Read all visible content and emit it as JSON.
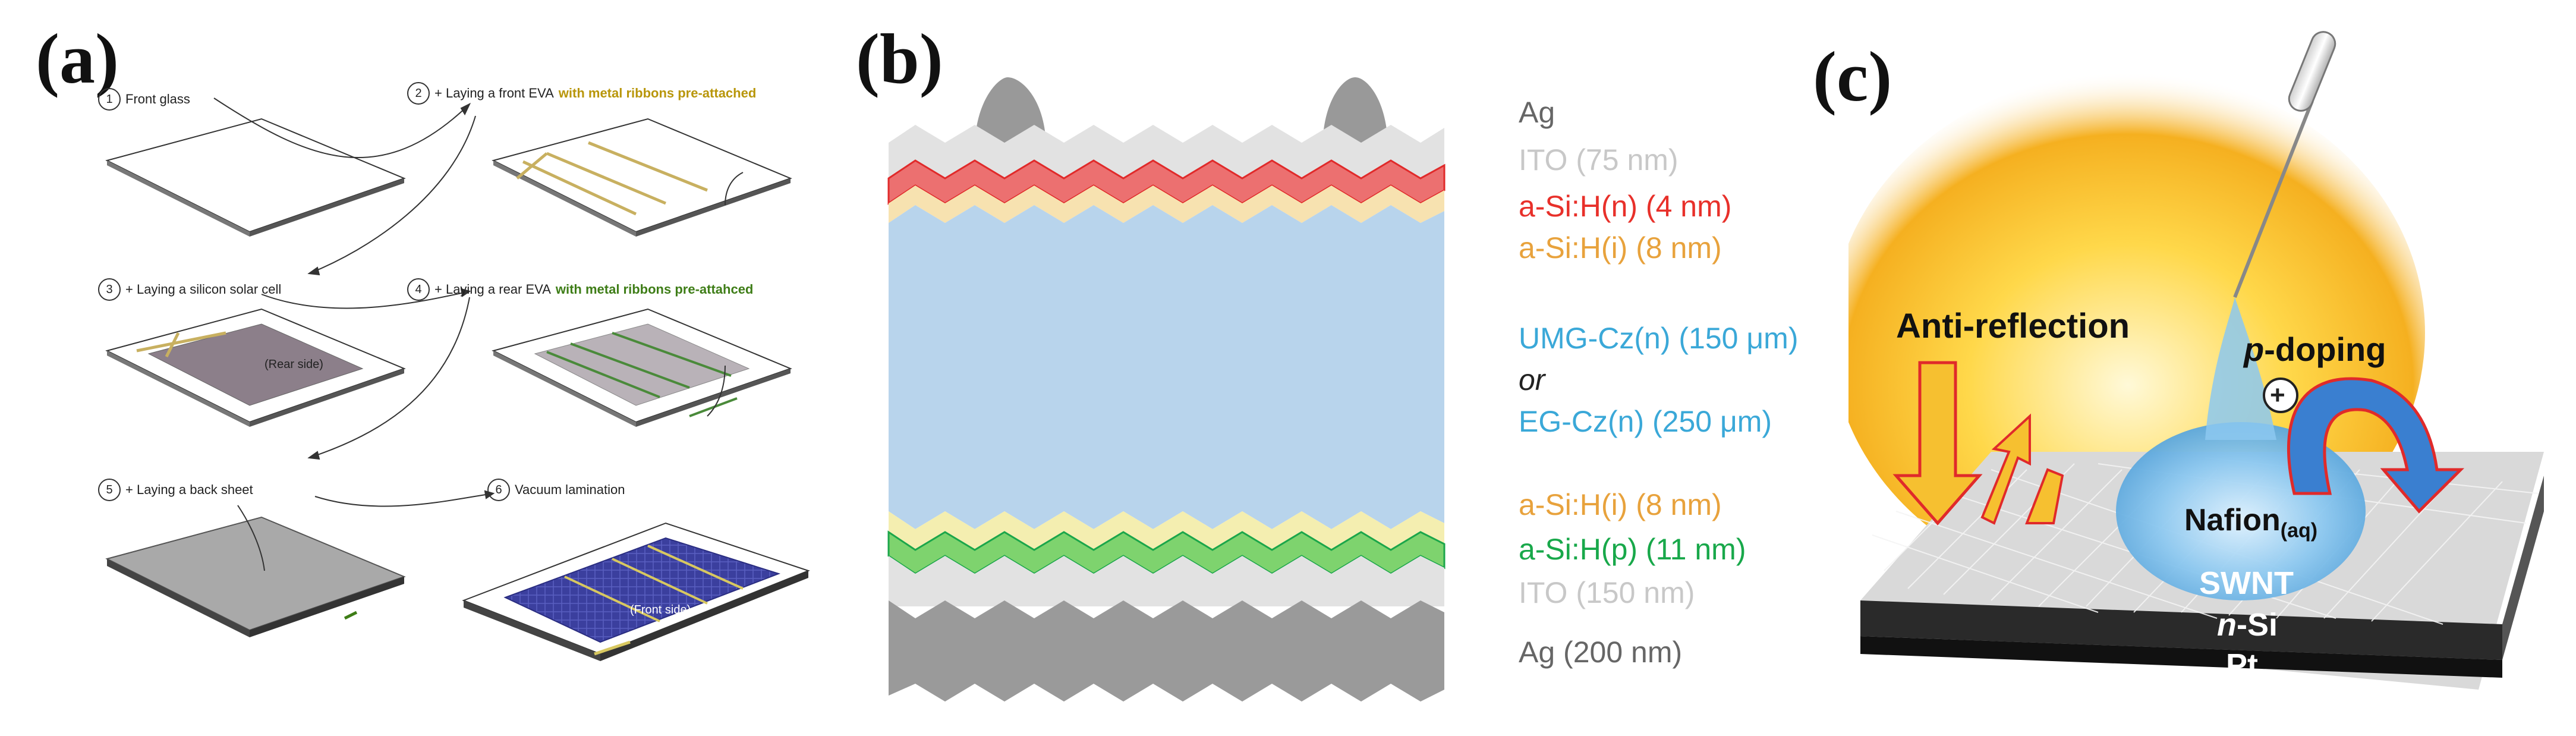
{
  "panels": {
    "a": "(a)",
    "b": "(b)",
    "c": "(c)"
  },
  "panel_a": {
    "steps": [
      {
        "num": "1",
        "text": "Front glass",
        "highlight": ""
      },
      {
        "num": "2",
        "text": "+ Laying a front EVA",
        "highlight": " with metal ribbons pre-attached"
      },
      {
        "num": "3",
        "text": "+ Laying a silicon solar cell",
        "highlight": ""
      },
      {
        "num": "4",
        "text": "+ Laying a rear EVA",
        "highlight": " with metal ribbons pre-attahced"
      },
      {
        "num": "5",
        "text": "+ Laying a back sheet",
        "highlight": ""
      },
      {
        "num": "6",
        "text": "Vacuum lamination",
        "highlight": ""
      }
    ],
    "rear_side_label": "(Rear side)",
    "front_side_label": "(Front side)",
    "colors": {
      "gold_highlight": "#b8960a",
      "green_highlight": "#3e7d17"
    }
  },
  "panel_b": {
    "layers": [
      {
        "label": "Ag",
        "color": "#666666"
      },
      {
        "label": "ITO (75 nm)",
        "color": "#c8c8c8"
      },
      {
        "label": "a-Si:H(n) (4 nm)",
        "color": "#e8302a"
      },
      {
        "label": "a-Si:H(i) (8 nm)",
        "color": "#e8a23c"
      },
      {
        "label": "UMG-Cz(n) (150 μm)",
        "color": "#3aa8d8"
      },
      {
        "label": "or",
        "color": "#222222"
      },
      {
        "label": "EG-Cz(n) (250 μm)",
        "color": "#3aa8d8"
      },
      {
        "label": "a-Si:H(i) (8 nm)",
        "color": "#e8a23c"
      },
      {
        "label": "a-Si:H(p) (11 nm)",
        "color": "#18a84a"
      },
      {
        "label": "ITO (150 nm)",
        "color": "#c8c8c8"
      },
      {
        "label": "Ag (200 nm)",
        "color": "#666666"
      }
    ]
  },
  "panel_c": {
    "anti_reflection": "Anti-reflection",
    "p_doping_p": "p",
    "p_doping_rest": "-doping",
    "nafion": "Nafion",
    "nafion_sub": "(aq)",
    "swnt": "SWNT",
    "nsi_n": "n",
    "nsi_rest": "-Si",
    "pt": "Pt",
    "plus": "+"
  }
}
